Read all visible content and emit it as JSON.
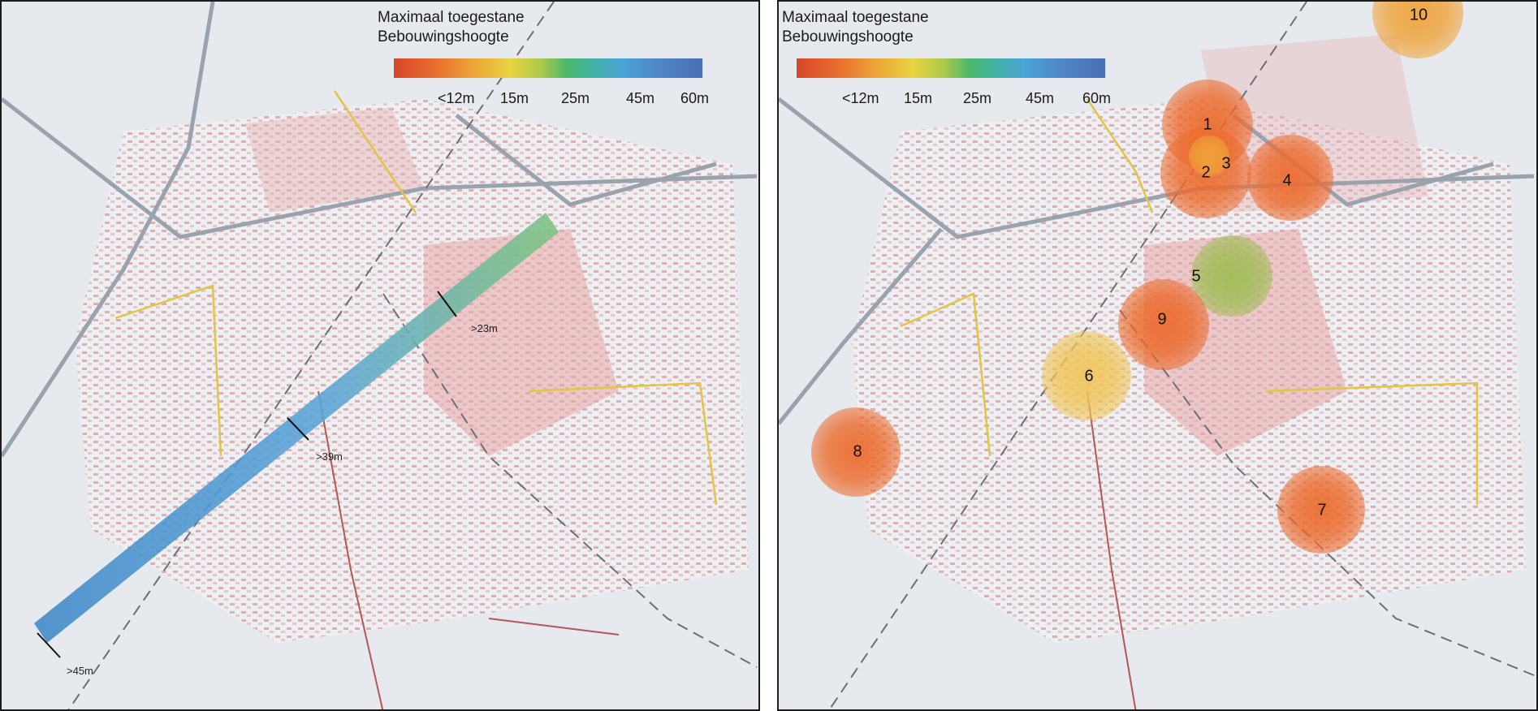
{
  "legend": {
    "title": "Maximaal toegestane\nBebouwingshoogte",
    "ticks": [
      "<12m",
      "15m",
      "25m",
      "45m",
      "60m"
    ]
  },
  "left_map": {
    "corridor_labels": [
      ">23m",
      ">39m",
      ">45m"
    ]
  },
  "right_map": {
    "zones": [
      {
        "label": "1",
        "color": "#ec6a2c"
      },
      {
        "label": "2",
        "color": "#ec6a2c"
      },
      {
        "label": "3",
        "color": "#f0a33a"
      },
      {
        "label": "4",
        "color": "#ec6a2c"
      },
      {
        "label": "5",
        "color": "#9fbd55"
      },
      {
        "label": "6",
        "color": "#f0c65a"
      },
      {
        "label": "7",
        "color": "#ec6a2c"
      },
      {
        "label": "8",
        "color": "#ec6a2c"
      },
      {
        "label": "9",
        "color": "#ec6a2c"
      },
      {
        "label": "10",
        "color": "#f0a33a"
      }
    ]
  }
}
